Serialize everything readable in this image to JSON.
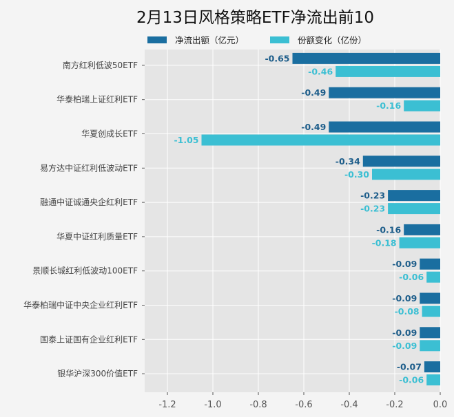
{
  "chart_data": {
    "type": "bar",
    "orientation": "horizontal",
    "title": "2月13日风格策略ETF净流出前10",
    "categories": [
      "南方红利低波50ETF",
      "华泰柏瑞上证红利ETF",
      "华夏创成长ETF",
      "易方达中证红利低波动ETF",
      "融通中证诚通央企红利ETF",
      "华夏中证红利质量ETF",
      "景顺长城红利低波动100ETF",
      "华泰柏瑞中证中央企业红利ETF",
      "国泰上证国有企业红利ETF",
      "银华沪深300价值ETF"
    ],
    "series": [
      {
        "name": "净流出额（亿元）",
        "color": "#1a6ea0",
        "values": [
          -0.65,
          -0.49,
          -0.49,
          -0.34,
          -0.23,
          -0.16,
          -0.09,
          -0.09,
          -0.09,
          -0.07
        ]
      },
      {
        "name": "份额变化（亿份）",
        "color": "#3bbfd3",
        "values": [
          -0.46,
          -0.16,
          -1.05,
          -0.3,
          -0.23,
          -0.18,
          -0.06,
          -0.08,
          -0.09,
          -0.06
        ]
      }
    ],
    "xticks": [
      "-1.2",
      "-1.0",
      "-0.8",
      "-0.6",
      "-0.4",
      "-0.2",
      "0.0"
    ],
    "xtick_values": [
      -1.2,
      -1.0,
      -0.8,
      -0.6,
      -0.4,
      -0.2,
      0.0
    ],
    "xlim": [
      -1.3,
      0
    ],
    "grid": true,
    "legend": "top"
  }
}
